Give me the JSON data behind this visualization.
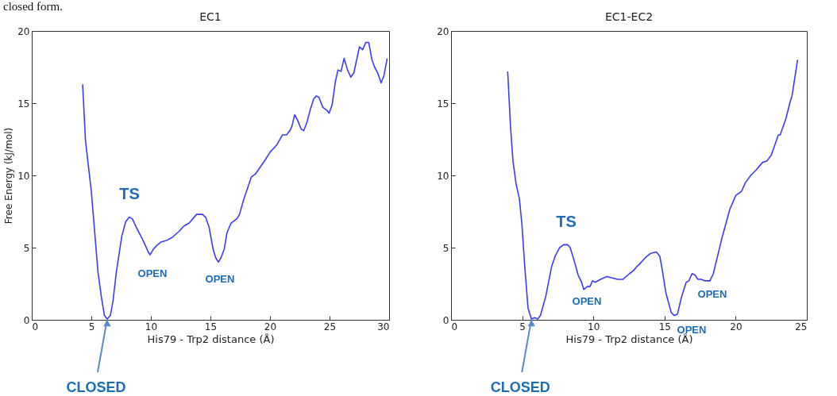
{
  "chart_data": [
    {
      "type": "line",
      "title": "EC1",
      "xlabel": "His79 - Trp2 distance (Å)",
      "ylabel": "Free Energy (kJ/mol)",
      "xlim": [
        0,
        30
      ],
      "xticks": [
        0,
        5,
        10,
        15,
        20,
        25,
        30
      ],
      "ylim": [
        0,
        20
      ],
      "yticks": [
        0,
        5,
        10,
        15,
        20
      ],
      "series": [
        {
          "color": "#3b3bf5",
          "x": [
            4.27,
            4.51,
            5.0,
            5.56,
            5.84,
            6.1,
            6.33,
            6.6,
            6.82,
            7.1,
            7.56,
            7.89,
            8.18,
            8.44,
            8.78,
            9.22,
            9.56,
            9.78,
            9.93,
            10.22,
            10.56,
            10.89,
            11.33,
            11.78,
            12.33,
            12.78,
            13.22,
            13.84,
            14.33,
            14.6,
            14.89,
            15.22,
            15.44,
            15.67,
            15.89,
            16.16,
            16.38,
            16.73,
            17.22,
            17.44,
            17.78,
            18.44,
            18.78,
            19.62,
            20.0,
            20.56,
            21.04,
            21.38,
            21.67,
            21.84,
            22.07,
            22.33,
            22.62,
            22.84,
            23.11,
            23.4,
            23.67,
            23.89,
            24.11,
            24.44,
            24.78,
            24.96,
            25.22,
            25.49,
            25.71,
            25.96,
            26.22,
            26.51,
            26.78,
            27.04,
            27.51,
            27.78,
            28.04,
            28.29,
            28.56,
            28.78,
            29.04,
            29.33,
            29.56,
            29.84
          ],
          "values": [
            16.3,
            12.4,
            8.9,
            3.3,
            1.6,
            0.3,
            0.05,
            0.3,
            1.3,
            3.3,
            5.8,
            6.8,
            7.1,
            7.0,
            6.4,
            5.7,
            5.1,
            4.7,
            4.5,
            4.9,
            5.2,
            5.4,
            5.5,
            5.7,
            6.1,
            6.5,
            6.7,
            7.3,
            7.3,
            7.1,
            6.4,
            4.9,
            4.3,
            4.0,
            4.3,
            4.9,
            6.0,
            6.7,
            7.0,
            7.3,
            8.3,
            9.9,
            10.1,
            11.1,
            11.6,
            12.1,
            12.8,
            12.8,
            13.1,
            13.4,
            14.2,
            13.8,
            13.2,
            13.1,
            13.7,
            14.6,
            15.3,
            15.5,
            15.4,
            14.7,
            14.5,
            14.3,
            14.9,
            16.5,
            17.3,
            17.2,
            18.1,
            17.3,
            16.8,
            17.1,
            18.9,
            18.7,
            19.2,
            19.2,
            18.0,
            17.5,
            17.1,
            16.4,
            16.9,
            18.1
          ]
        }
      ],
      "annotations": [
        "closed form.",
        "TS",
        "OPEN",
        "OPEN",
        {
          "text": "CLOSED",
          "x": 6.33,
          "y": 0.05
        }
      ]
    },
    {
      "type": "line",
      "title": "EC1-EC2",
      "xlabel": "His79 - Trp2 distance (Å)",
      "xlim": [
        0,
        25
      ],
      "xticks": [
        0,
        5,
        10,
        15,
        20,
        25
      ],
      "ylim": [
        0,
        20
      ],
      "yticks": [
        0,
        5,
        10,
        15,
        20
      ],
      "series": [
        {
          "color": "#3b3bf5",
          "x": [
            3.98,
            4.17,
            4.35,
            4.57,
            4.8,
            4.98,
            5.17,
            5.41,
            5.65,
            5.87,
            6.09,
            6.28,
            6.65,
            7.07,
            7.31,
            7.63,
            7.91,
            8.19,
            8.37,
            8.65,
            8.93,
            9.17,
            9.33,
            9.57,
            9.76,
            9.94,
            10.13,
            10.5,
            10.96,
            11.33,
            11.7,
            12.07,
            12.54,
            12.81,
            13.06,
            13.19,
            13.65,
            14.02,
            14.43,
            14.67,
            14.85,
            15.09,
            15.47,
            15.69,
            15.91,
            16.2,
            16.52,
            16.71,
            16.93,
            17.13,
            17.35,
            17.58,
            17.82,
            18.06,
            18.19,
            18.43,
            19.02,
            19.57,
            20.0,
            20.41,
            20.69,
            21.06,
            21.46,
            21.89,
            22.2,
            22.5,
            23.0,
            23.13,
            23.55,
            23.8,
            23.96,
            24.35
          ],
          "values": [
            17.2,
            13.5,
            11.0,
            9.4,
            8.4,
            6.6,
            3.8,
            0.8,
            0.05,
            0.15,
            0.05,
            0.3,
            1.6,
            3.7,
            4.4,
            5.0,
            5.2,
            5.2,
            5.0,
            4.1,
            3.1,
            2.6,
            2.1,
            2.3,
            2.3,
            2.7,
            2.6,
            2.8,
            3.0,
            2.9,
            2.8,
            2.8,
            3.2,
            3.4,
            3.7,
            3.8,
            4.3,
            4.6,
            4.7,
            4.4,
            3.4,
            1.9,
            0.5,
            0.3,
            0.4,
            1.6,
            2.6,
            2.7,
            3.2,
            3.1,
            2.8,
            2.8,
            2.7,
            2.7,
            2.7,
            3.2,
            5.6,
            7.6,
            8.6,
            8.9,
            9.5,
            10.0,
            10.4,
            10.9,
            11.0,
            11.4,
            12.8,
            12.8,
            14.0,
            15.0,
            15.5,
            18.0
          ]
        }
      ],
      "annotations": [
        "TS",
        "OPEN",
        "OPEN",
        "OPEN",
        {
          "text": "CLOSED",
          "x": 5.65,
          "y": 0.05
        }
      ]
    }
  ]
}
